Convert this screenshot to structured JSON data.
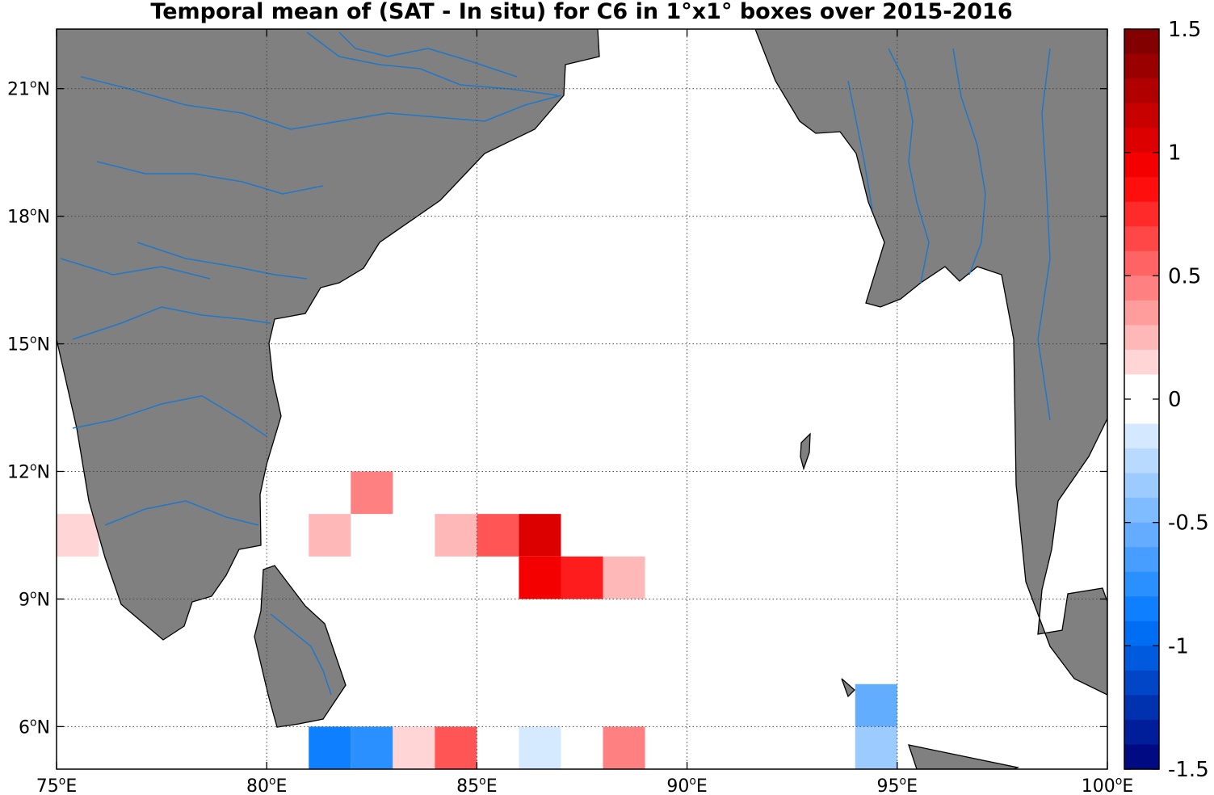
{
  "title": "Temporal mean of (SAT - In situ) for C6 in 1°x1° boxes over 2015-2016",
  "map": {
    "lon_range": [
      75,
      100
    ],
    "lat_range": [
      5,
      22.4
    ],
    "x_ticks": [
      {
        "value": 75,
        "label": "75",
        "suffix": "E"
      },
      {
        "value": 80,
        "label": "80",
        "suffix": "E"
      },
      {
        "value": 85,
        "label": "85",
        "suffix": "E"
      },
      {
        "value": 90,
        "label": "90",
        "suffix": "E"
      },
      {
        "value": 95,
        "label": "95",
        "suffix": "E"
      },
      {
        "value": 100,
        "label": "100",
        "suffix": "E"
      }
    ],
    "y_ticks": [
      {
        "value": 6,
        "label": "6",
        "suffix": "N"
      },
      {
        "value": 9,
        "label": "9",
        "suffix": "N"
      },
      {
        "value": 12,
        "label": "12",
        "suffix": "N"
      },
      {
        "value": 15,
        "label": "15",
        "suffix": "N"
      },
      {
        "value": 18,
        "label": "18",
        "suffix": "N"
      },
      {
        "value": 21,
        "label": "21",
        "suffix": "N"
      }
    ],
    "degree_symbol": "o",
    "grid": "dotted",
    "land_color": "#808080",
    "river_color": "#1f78c8",
    "ocean_color": "#ffffff"
  },
  "colorbar": {
    "min": -1.5,
    "max": 1.5,
    "step": 0.1,
    "ticks": [
      {
        "value": 1.5,
        "label": "1.5"
      },
      {
        "value": 1,
        "label": "1"
      },
      {
        "value": 0.5,
        "label": "0.5"
      },
      {
        "value": 0,
        "label": "0"
      },
      {
        "value": -0.5,
        "label": "-0.5"
      },
      {
        "value": -1,
        "label": "-1"
      },
      {
        "value": -1.5,
        "label": "-1.5"
      }
    ]
  },
  "chart_data": {
    "type": "heatmap",
    "cell_size_deg": 1,
    "cells": [
      {
        "lon": 75,
        "lat": 10,
        "value": 0.15
      },
      {
        "lon": 82,
        "lat": 11,
        "value": 0.45
      },
      {
        "lon": 81,
        "lat": 10,
        "value": 0.25
      },
      {
        "lon": 84,
        "lat": 10,
        "value": 0.25
      },
      {
        "lon": 85,
        "lat": 10,
        "value": 0.6
      },
      {
        "lon": 86,
        "lat": 10,
        "value": 1.05
      },
      {
        "lon": 86,
        "lat": 9,
        "value": 0.95
      },
      {
        "lon": 87,
        "lat": 9,
        "value": 0.8
      },
      {
        "lon": 88,
        "lat": 9,
        "value": 0.25
      },
      {
        "lon": 81,
        "lat": 5,
        "value": -0.85
      },
      {
        "lon": 82,
        "lat": 5,
        "value": -0.75
      },
      {
        "lon": 83,
        "lat": 5,
        "value": 0.15
      },
      {
        "lon": 84,
        "lat": 5,
        "value": 0.6
      },
      {
        "lon": 86,
        "lat": 5,
        "value": -0.15
      },
      {
        "lon": 88,
        "lat": 5,
        "value": 0.45
      },
      {
        "lon": 94,
        "lat": 6,
        "value": -0.55
      },
      {
        "lon": 94,
        "lat": 5,
        "value": -0.35
      }
    ]
  }
}
